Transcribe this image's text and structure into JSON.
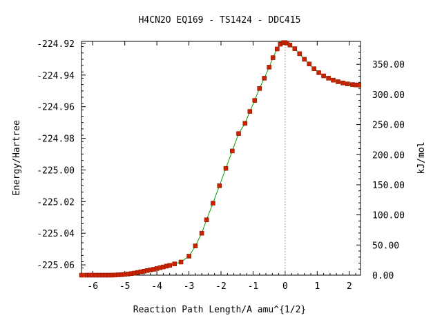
{
  "chart_data": {
    "type": "line",
    "title": "H4CN2O   EQ169 - TS1424 - DDC415",
    "xlabel": "Reaction Path Length/A amu^{1/2}",
    "ylabel": "Energy/Hartree",
    "y2label": "kJ/mol",
    "xlim": [
      -6.35,
      2.35
    ],
    "ylim": [
      -225.0665,
      -224.9187
    ],
    "y2lim": [
      0.0,
      388.0
    ],
    "x_ticks": [
      -6,
      -5,
      -4,
      -3,
      -2,
      -1,
      0,
      1,
      2
    ],
    "x_tick_labels": [
      "-6",
      "-5",
      "-4",
      "-3",
      "-2",
      "-1",
      "0",
      "1",
      "2"
    ],
    "y_ticks": [
      -224.92,
      -224.94,
      -224.96,
      -224.98,
      -225.0,
      -225.02,
      -225.04,
      -225.06
    ],
    "y_tick_labels": [
      "-224.92",
      "-224.94",
      "-224.96",
      "-224.98",
      "-225.00",
      "-225.02",
      "-225.04",
      "-225.06"
    ],
    "y2_ticks": [
      0,
      50,
      100,
      150,
      200,
      250,
      300,
      350
    ],
    "y2_tick_labels": [
      "0.00",
      "50.00",
      "100.00",
      "150.00",
      "200.00",
      "250.00",
      "300.00",
      "350.00"
    ],
    "ts_x": 0.0,
    "line_color": "#00a000",
    "marker_color": "#cc2200",
    "marker_edge_color": "#8b1a00",
    "vline_color": "#999999",
    "grid": false,
    "series": [
      {
        "x": [
          -6.35,
          -6.2,
          -6.1,
          -6.0,
          -5.9,
          -5.8,
          -5.7,
          -5.6,
          -5.5,
          -5.4,
          -5.3,
          -5.2,
          -5.1,
          -5.0,
          -4.9,
          -4.8,
          -4.7,
          -4.6,
          -4.5,
          -4.4,
          -4.3,
          -4.2,
          -4.1,
          -4.0,
          -3.9,
          -3.8,
          -3.7,
          -3.6,
          -3.45,
          -3.25,
          -3.0,
          -2.8,
          -2.6,
          -2.45,
          -2.25,
          -2.05,
          -1.85,
          -1.65,
          -1.45,
          -1.25,
          -1.1,
          -0.95,
          -0.8,
          -0.65,
          -0.5,
          -0.38,
          -0.25,
          -0.15,
          -0.05,
          0.0,
          0.05,
          0.15,
          0.3,
          0.45,
          0.6,
          0.75,
          0.9,
          1.05,
          1.2,
          1.35,
          1.5,
          1.65,
          1.8,
          1.95,
          2.1,
          2.2,
          2.3
        ],
        "y": [
          -225.0665,
          -225.0665,
          -225.0665,
          -225.0665,
          -225.0665,
          -225.0665,
          -225.0665,
          -225.0665,
          -225.0665,
          -225.0665,
          -225.0664,
          -225.0663,
          -225.0662,
          -225.066,
          -225.0658,
          -225.0655,
          -225.0652,
          -225.0648,
          -225.0644,
          -225.064,
          -225.0636,
          -225.0632,
          -225.0628,
          -225.0623,
          -225.0618,
          -225.0613,
          -225.0608,
          -225.0603,
          -225.0594,
          -225.0582,
          -225.0545,
          -225.048,
          -225.04,
          -225.0315,
          -225.021,
          -225.01,
          -224.999,
          -224.988,
          -224.977,
          -224.9705,
          -224.963,
          -224.956,
          -224.9485,
          -224.942,
          -224.935,
          -224.929,
          -224.9235,
          -224.9205,
          -224.9195,
          -224.9195,
          -224.9198,
          -224.921,
          -224.9233,
          -224.9265,
          -224.93,
          -224.933,
          -224.936,
          -224.9385,
          -224.9405,
          -224.942,
          -224.9432,
          -224.9442,
          -224.945,
          -224.9456,
          -224.946,
          -224.9462,
          -224.9463
        ]
      }
    ]
  }
}
